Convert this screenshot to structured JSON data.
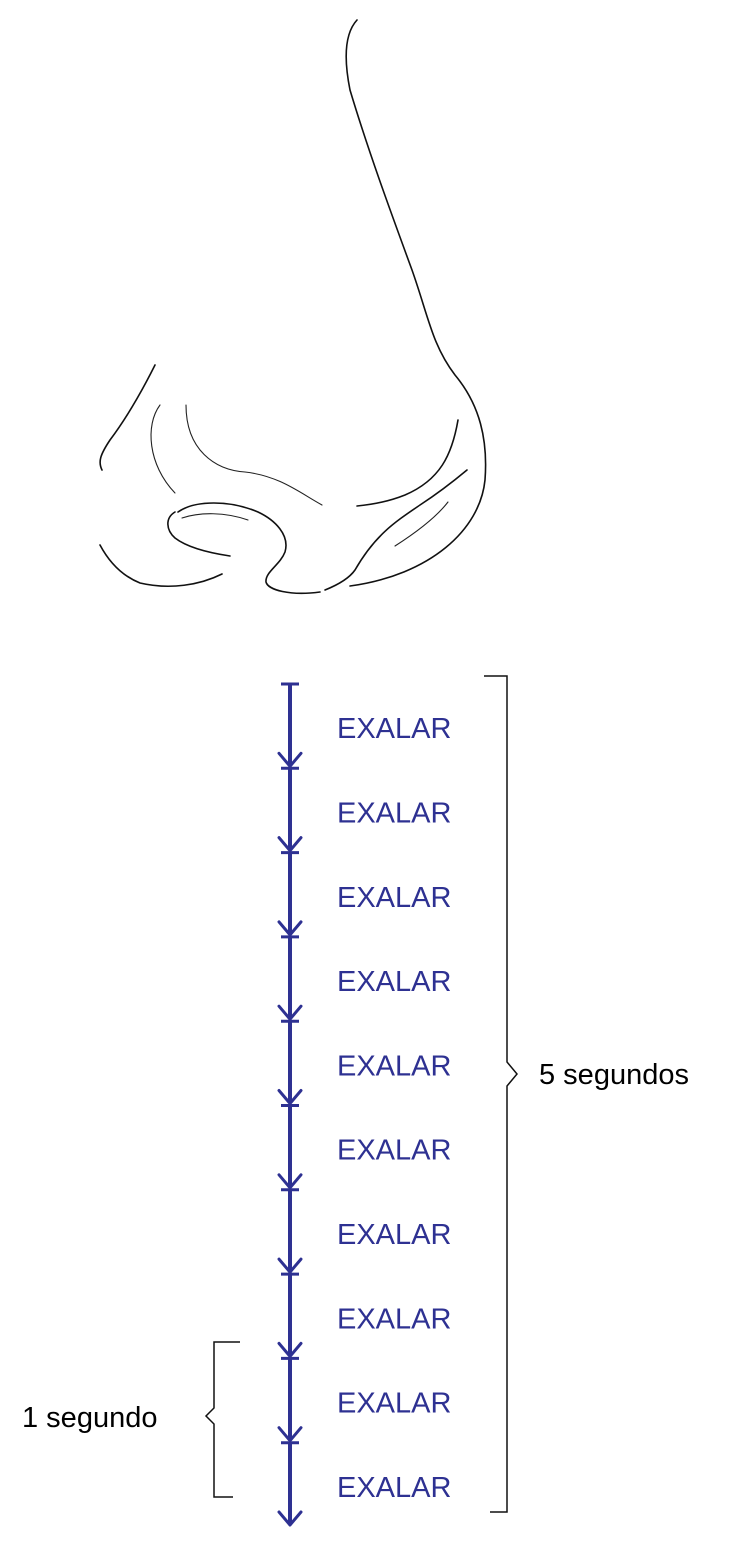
{
  "diagram": {
    "exhale_label": "EXALAR",
    "exhale_count": 10,
    "bracket_long_label": "5 segundos",
    "bracket_short_label": "1 segundo",
    "colors": {
      "arrow": "#2e3192",
      "text": "#2e3192",
      "line": "#111111"
    },
    "illustration": "nose-outline"
  }
}
